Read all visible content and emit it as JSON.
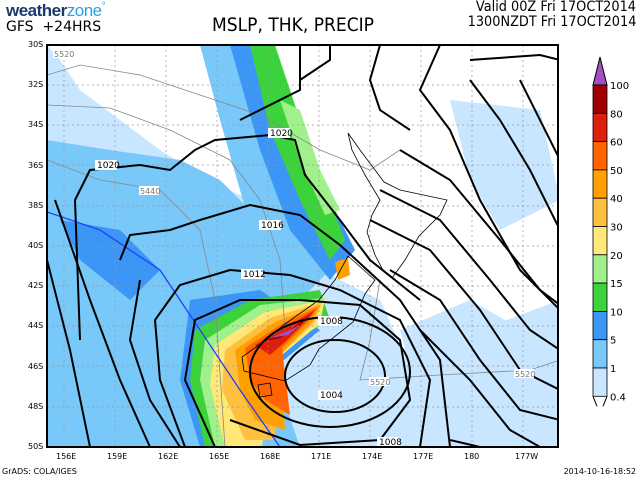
{
  "header": {
    "logo_part1": "weather",
    "logo_part2": "zone",
    "logo_mark": "°",
    "model": "GFS  +24HRS",
    "title": "MSLP, THK, PRECIP",
    "valid_utc": "Valid 00Z Fri 17OCT2014",
    "valid_local": "1300NZDT Fri 17OCT2014"
  },
  "map": {
    "lat_labels": [
      "30S",
      "32S",
      "34S",
      "36S",
      "38S",
      "40S",
      "42S",
      "44S",
      "46S",
      "48S",
      "50S"
    ],
    "lon_labels": [
      "156E",
      "159E",
      "162E",
      "165E",
      "168E",
      "171E",
      "174E",
      "177E",
      "180",
      "177W"
    ],
    "isobar_labels": [
      "1020",
      "1020",
      "1016",
      "1012",
      "1008",
      "1004",
      "1008"
    ],
    "thickness_labels": [
      "5520",
      "5440",
      "5520",
      "5520"
    ]
  },
  "colorbar": {
    "levels": [
      "100",
      "80",
      "60",
      "50",
      "40",
      "30",
      "20",
      "15",
      "10",
      "5",
      "1",
      "0.4"
    ],
    "colors": [
      "#a050c0",
      "#a00000",
      "#dc1e0a",
      "#ff6400",
      "#ffa000",
      "#ffc040",
      "#ffe878",
      "#a0f08c",
      "#3cd23c",
      "#3c96f5",
      "#78c8fa",
      "#c8e6ff"
    ]
  },
  "footer": {
    "credit": "GrADS: COLA/IGES",
    "timestamp": "2014-10-16-18:52"
  }
}
